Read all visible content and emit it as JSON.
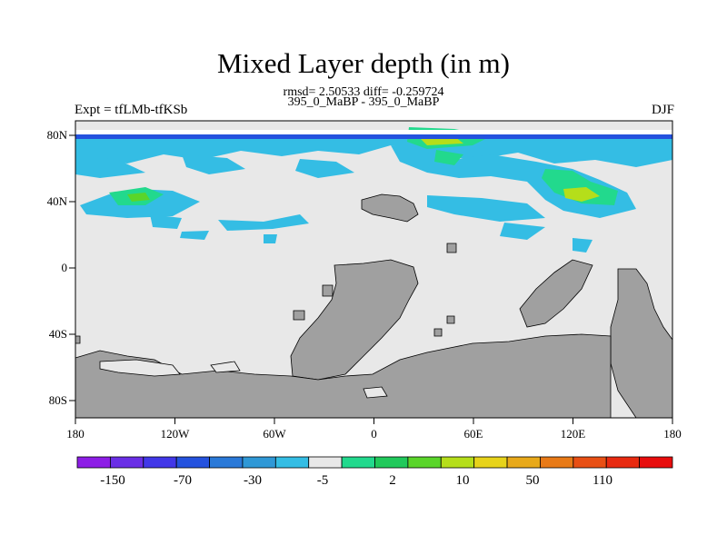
{
  "title": "Mixed Layer depth (in m)",
  "stats": "rmsd= 2.50533 diff= -0.259724",
  "subtitle": "395_0_MaBP - 395_0_MaBP",
  "left_label": "Expt = tfLMb-tfKSb",
  "right_label": "DJF",
  "x_ticks": [
    "180",
    "120W",
    "60W",
    "0",
    "60E",
    "120E",
    "180"
  ],
  "y_ticks": [
    "80N",
    "40N",
    "0",
    "40S",
    "80S"
  ],
  "colorbar": {
    "colors": [
      "#8d1de6",
      "#6a2ee6",
      "#4137e8",
      "#2452de",
      "#2a79d8",
      "#2f98d6",
      "#34bde4",
      "#e8e8e8",
      "#22d98d",
      "#20c95b",
      "#5ad52a",
      "#b5de1a",
      "#e7d31a",
      "#e8a91a",
      "#e87a17",
      "#e84f14",
      "#e82a10",
      "#e80d0d"
    ],
    "labels": [
      "-150",
      "-70",
      "-30",
      "-5",
      "2",
      "10",
      "50",
      "110"
    ]
  },
  "chart_data": {
    "type": "heatmap",
    "title": "Mixed Layer depth (in m)",
    "xlim": [
      -180,
      180
    ],
    "ylim": [
      -90,
      90
    ],
    "x_ticks": [
      -180,
      -120,
      -60,
      0,
      60,
      120,
      180
    ],
    "y_ticks": [
      80,
      40,
      0,
      -40,
      -80
    ],
    "levels": [
      -150,
      -70,
      -30,
      -5,
      2,
      10,
      50,
      110
    ]
  }
}
